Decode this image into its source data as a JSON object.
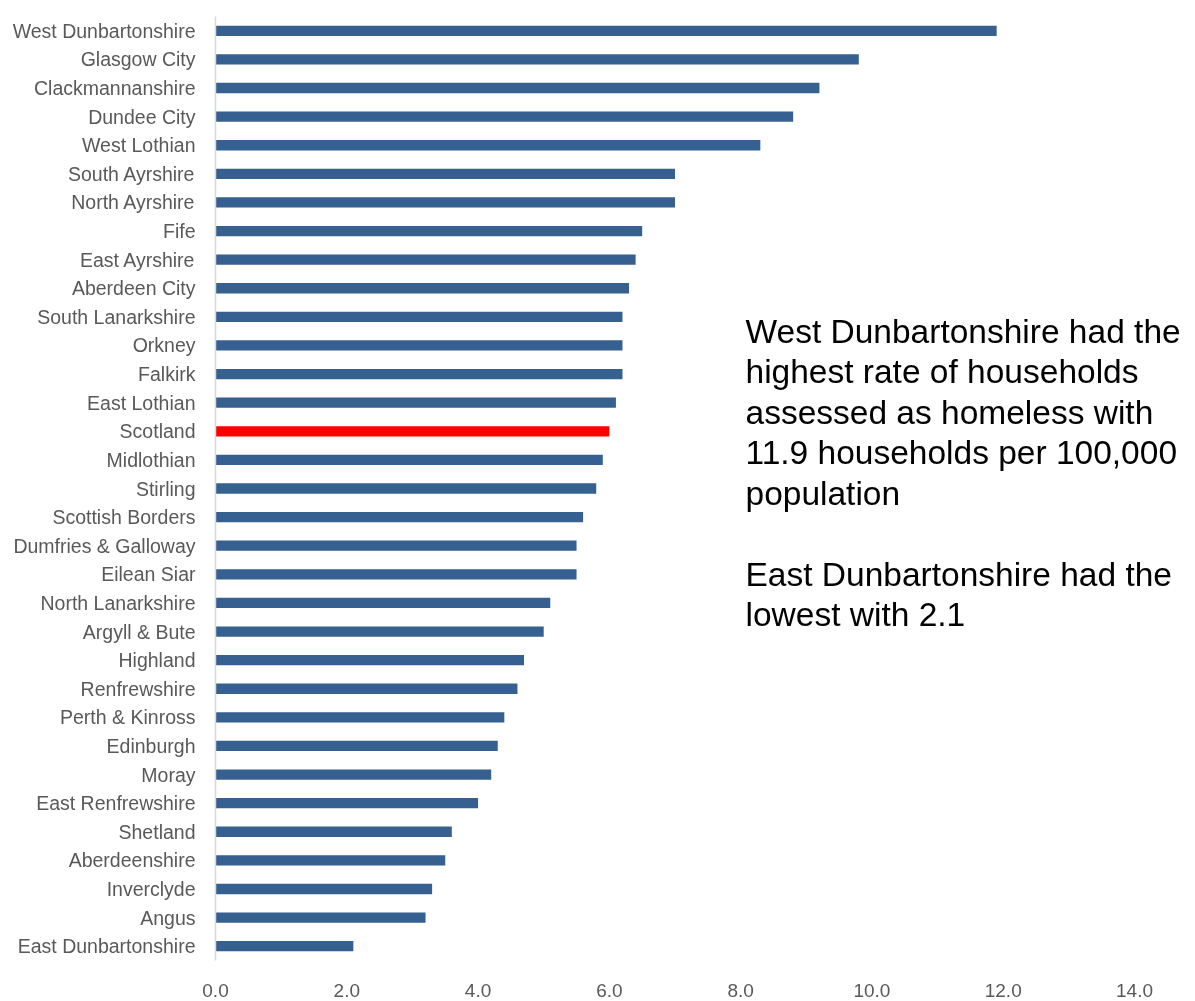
{
  "chart_data": {
    "type": "bar",
    "orientation": "horizontal",
    "categories": [
      "West Dunbartonshire",
      "Glasgow City",
      "Clackmannanshire",
      "Dundee City",
      "West Lothian",
      "South Ayrshire",
      "North Ayrshire",
      "Fife",
      "East Ayrshire",
      "Aberdeen City",
      "South Lanarkshire",
      "Orkney",
      "Falkirk",
      "East Lothian",
      "Scotland",
      "Midlothian",
      "Stirling",
      "Scottish Borders",
      "Dumfries & Galloway",
      "Eilean Siar",
      "North Lanarkshire",
      "Argyll & Bute",
      "Highland",
      "Renfrewshire",
      "Perth & Kinross",
      "Edinburgh",
      "Moray",
      "East Renfrewshire",
      "Shetland",
      "Aberdeenshire",
      "Inverclyde",
      "Angus",
      "East Dunbartonshire"
    ],
    "values": [
      11.9,
      9.8,
      9.2,
      8.8,
      8.3,
      7.0,
      7.0,
      6.5,
      6.4,
      6.3,
      6.2,
      6.2,
      6.2,
      6.1,
      6.0,
      5.9,
      5.8,
      5.6,
      5.5,
      5.5,
      5.1,
      5.0,
      4.7,
      4.6,
      4.4,
      4.3,
      4.2,
      4.0,
      3.6,
      3.5,
      3.3,
      3.2,
      2.1
    ],
    "colors": [
      "#36608f",
      "#36608f",
      "#36608f",
      "#36608f",
      "#36608f",
      "#36608f",
      "#36608f",
      "#36608f",
      "#36608f",
      "#36608f",
      "#36608f",
      "#36608f",
      "#36608f",
      "#36608f",
      "#ff0000",
      "#36608f",
      "#36608f",
      "#36608f",
      "#36608f",
      "#36608f",
      "#36608f",
      "#36608f",
      "#36608f",
      "#36608f",
      "#36608f",
      "#36608f",
      "#36608f",
      "#36608f",
      "#36608f",
      "#36608f",
      "#36608f",
      "#36608f",
      "#36608f"
    ],
    "xlim": [
      0,
      14
    ],
    "xticks": [
      {
        "value": 0,
        "label": "0.0"
      },
      {
        "value": 2,
        "label": "2.0"
      },
      {
        "value": 4,
        "label": "4.0"
      },
      {
        "value": 6,
        "label": "6.0"
      },
      {
        "value": 8,
        "label": "8.0"
      },
      {
        "value": 10,
        "label": "10.0"
      },
      {
        "value": 12,
        "label": "12.0"
      },
      {
        "value": 14,
        "label": "14.0"
      }
    ],
    "annotations": [
      "West Dunbartonshire had the highest rate of households assessed as homeless with 11.9 households per 100,000 population",
      "East Dunbartonshire had the lowest with 2.1"
    ]
  }
}
